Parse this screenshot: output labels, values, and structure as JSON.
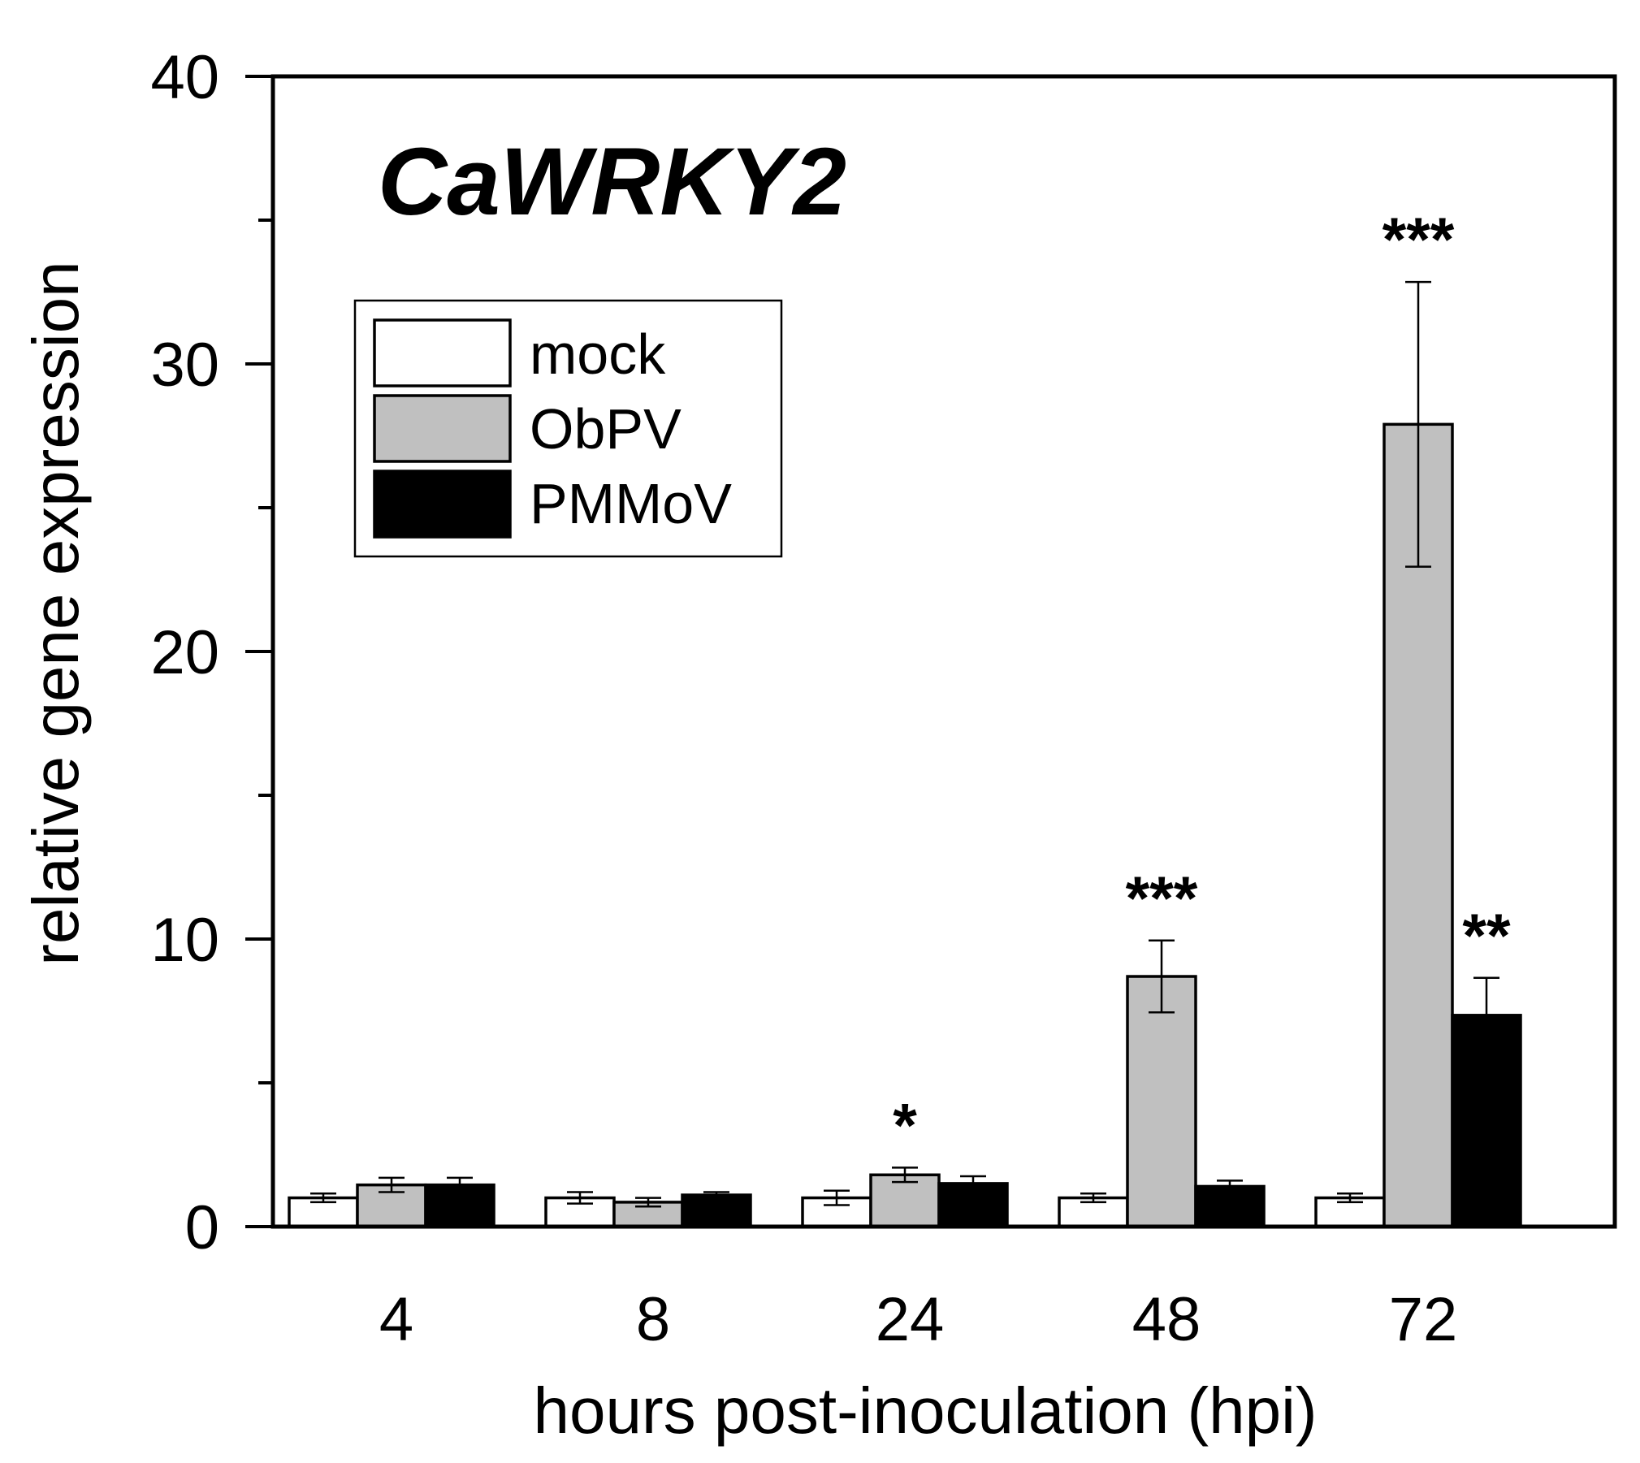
{
  "chart_data": {
    "type": "bar",
    "title": "CaWRKY2",
    "xlabel": "hours post-inoculation (hpi)",
    "ylabel": "relative gene expression",
    "categories": [
      "4",
      "8",
      "24",
      "48",
      "72"
    ],
    "ylim": [
      0,
      40
    ],
    "yticks": [
      "0",
      "10",
      "20",
      "30",
      "40"
    ],
    "series": [
      {
        "name": "mock",
        "color": "#ffffff",
        "values": [
          1.0,
          1.0,
          1.0,
          1.0,
          1.0
        ],
        "errors": [
          0.15,
          0.2,
          0.25,
          0.15,
          0.15
        ],
        "significance": [
          "",
          "",
          "",
          "",
          ""
        ]
      },
      {
        "name": "ObPV",
        "color": "#c0c0c0",
        "values": [
          1.45,
          0.85,
          1.8,
          8.7,
          27.9
        ],
        "errors": [
          0.25,
          0.15,
          0.25,
          1.25,
          4.95
        ],
        "significance": [
          "",
          "",
          "*",
          "***",
          "***"
        ]
      },
      {
        "name": "PMMoV",
        "color": "#000000",
        "values": [
          1.45,
          1.1,
          1.5,
          1.4,
          7.35
        ],
        "errors": [
          0.25,
          0.1,
          0.25,
          0.2,
          1.3
        ],
        "significance": [
          "",
          "",
          "",
          "",
          "**"
        ]
      }
    ],
    "legend_position": "top-left",
    "grid": false
  }
}
